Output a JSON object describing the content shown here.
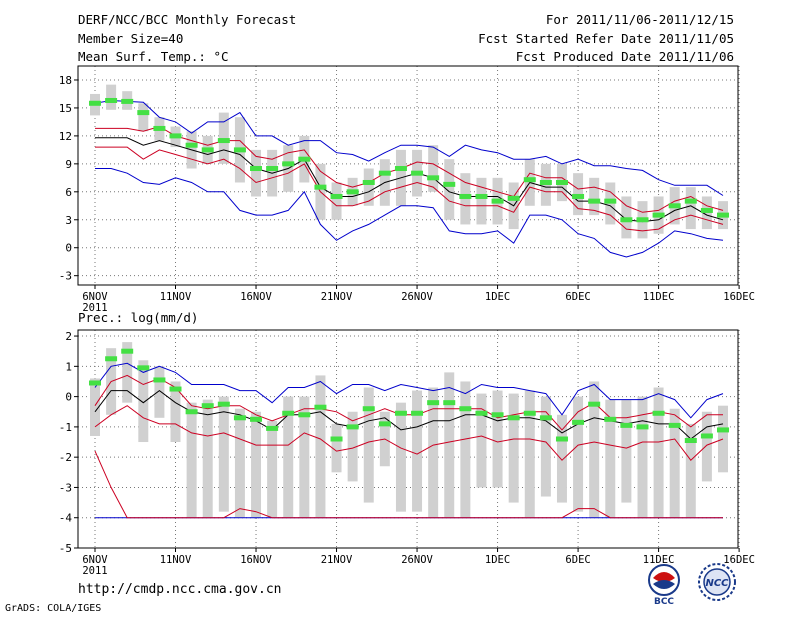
{
  "header": {
    "title": "DERF/NCC/BCC Monthly Forecast",
    "member": "Member Size=40",
    "variable": "Mean Surf. Temp.: °C",
    "period": "For 2011/11/06-2011/12/15",
    "started": "Fcst Started Refer Date 2011/11/05",
    "produced": "Fcst Produced Date 2011/11/06"
  },
  "footer": {
    "url": "http://cmdp.ncc.cma.gov.cn",
    "grads": "GrADS: COLA/IGES",
    "logo1_text": "BCC",
    "logo2_text": "NCC"
  },
  "colors": {
    "box": "#d0d0d0",
    "median": "#44e044",
    "mean": "#000000",
    "spread": "#cc0022",
    "extreme": "#0000cc",
    "grid": "#777777"
  },
  "chart_data": [
    {
      "type": "line",
      "title": "Mean Surf. Temp.: °C",
      "x_labels": [
        "6NOV",
        "11NOV",
        "16NOV",
        "21NOV",
        "26NOV",
        "1DEC",
        "6DEC",
        "11DEC",
        "16DEC"
      ],
      "x_sublabel": "2011",
      "days": 40,
      "ylim": [
        -4,
        19.5
      ],
      "yticks": [
        -3,
        0,
        3,
        6,
        9,
        12,
        15,
        18
      ],
      "series": [
        {
          "name": "ensemble max",
          "color": "#0000cc",
          "values": [
            15.5,
            15.8,
            15.7,
            15.6,
            14.0,
            13.5,
            12.3,
            13.5,
            13.5,
            14.5,
            12.0,
            12.0,
            11.0,
            11.5,
            11.5,
            10.2,
            10.0,
            9.3,
            10.2,
            11.0,
            11.0,
            10.8,
            9.8,
            11.0,
            10.5,
            10.2,
            9.5,
            9.5,
            9.8,
            9.0,
            9.5,
            8.8,
            8.8,
            8.5,
            8.3,
            7.3,
            6.7,
            6.7,
            6.7,
            5.6
          ]
        },
        {
          "name": "upper spread",
          "color": "#cc0022",
          "values": [
            12.8,
            12.8,
            12.8,
            12.5,
            13.0,
            12.0,
            11.5,
            11.0,
            11.5,
            11.5,
            9.8,
            9.5,
            10.2,
            10.5,
            8.2,
            7.0,
            6.5,
            7.0,
            8.0,
            8.5,
            9.2,
            9.0,
            8.0,
            7.0,
            6.5,
            6.0,
            5.5,
            8.0,
            7.5,
            7.5,
            6.3,
            6.5,
            6.0,
            4.5,
            3.8,
            4.0,
            5.0,
            5.5,
            4.5,
            4.0
          ]
        },
        {
          "name": "ensemble mean",
          "color": "#000000",
          "values": [
            11.8,
            11.8,
            11.8,
            11.0,
            11.5,
            11.0,
            10.5,
            10.0,
            10.5,
            10.0,
            8.5,
            8.0,
            8.5,
            9.5,
            6.5,
            5.5,
            5.5,
            6.0,
            7.0,
            7.5,
            8.0,
            7.5,
            6.0,
            5.5,
            5.5,
            5.5,
            4.5,
            7.0,
            6.5,
            6.5,
            5.0,
            5.0,
            4.5,
            3.0,
            2.8,
            3.0,
            4.0,
            4.5,
            3.5,
            3.0
          ]
        },
        {
          "name": "lower spread",
          "color": "#cc0022",
          "values": [
            10.8,
            10.8,
            10.8,
            9.5,
            10.5,
            10.0,
            9.5,
            9.0,
            9.5,
            8.5,
            7.0,
            7.5,
            8.0,
            9.0,
            6.0,
            4.5,
            4.5,
            5.0,
            6.0,
            6.5,
            7.0,
            6.5,
            5.0,
            4.5,
            4.5,
            4.5,
            3.8,
            6.5,
            6.0,
            6.0,
            4.2,
            4.0,
            3.5,
            2.0,
            1.8,
            2.0,
            3.0,
            3.5,
            3.0,
            2.5
          ]
        },
        {
          "name": "ensemble min",
          "color": "#0000cc",
          "values": [
            8.5,
            8.5,
            8.0,
            7.0,
            6.8,
            7.5,
            7.0,
            6.0,
            6.0,
            4.0,
            3.5,
            3.5,
            4.0,
            6.0,
            2.5,
            0.8,
            1.8,
            2.5,
            3.5,
            4.5,
            4.5,
            4.3,
            1.8,
            1.5,
            1.5,
            1.8,
            0.5,
            3.5,
            3.5,
            3.0,
            1.5,
            1.0,
            -0.5,
            -1.0,
            -0.5,
            0.5,
            1.8,
            1.5,
            1.0,
            0.8
          ]
        },
        {
          "name": "median",
          "color": "#44e044",
          "values": [
            15.5,
            15.8,
            15.7,
            14.5,
            12.8,
            12.0,
            11.0,
            10.5,
            11.5,
            10.5,
            8.5,
            8.5,
            9.0,
            9.5,
            6.5,
            5.5,
            6.0,
            7.0,
            8.0,
            8.5,
            8.0,
            7.5,
            6.8,
            5.5,
            5.5,
            5.0,
            5.3,
            7.3,
            7.0,
            7.0,
            5.5,
            5.0,
            5.0,
            3.0,
            3.0,
            3.5,
            4.5,
            5.0,
            4.0,
            3.5
          ]
        }
      ],
      "boxes": [
        [
          14.2,
          16.5
        ],
        [
          14.8,
          17.5
        ],
        [
          14.8,
          16.8
        ],
        [
          12.5,
          15.5
        ],
        [
          11.5,
          14.0
        ],
        [
          10.8,
          13.0
        ],
        [
          8.5,
          12.5
        ],
        [
          9.0,
          12.0
        ],
        [
          9.0,
          14.5
        ],
        [
          7.0,
          14.0
        ],
        [
          5.5,
          10.5
        ],
        [
          5.5,
          10.5
        ],
        [
          6.0,
          11.0
        ],
        [
          7.0,
          12.0
        ],
        [
          3.0,
          9.0
        ],
        [
          3.0,
          7.0
        ],
        [
          4.5,
          7.5
        ],
        [
          4.5,
          8.5
        ],
        [
          4.5,
          9.5
        ],
        [
          4.5,
          10.5
        ],
        [
          5.5,
          10.5
        ],
        [
          6.0,
          11.0
        ],
        [
          3.0,
          9.5
        ],
        [
          2.5,
          8.0
        ],
        [
          2.5,
          7.5
        ],
        [
          2.5,
          7.5
        ],
        [
          2.0,
          7.0
        ],
        [
          4.5,
          9.5
        ],
        [
          4.5,
          9.0
        ],
        [
          5.0,
          9.0
        ],
        [
          3.5,
          8.0
        ],
        [
          3.5,
          7.5
        ],
        [
          2.5,
          7.0
        ],
        [
          1.0,
          5.5
        ],
        [
          1.0,
          5.0
        ],
        [
          1.5,
          5.5
        ],
        [
          2.5,
          6.5
        ],
        [
          2.0,
          6.5
        ],
        [
          2.0,
          5.5
        ],
        [
          2.0,
          5.0
        ]
      ]
    },
    {
      "type": "line",
      "title": "Prec.: log(mm/d)",
      "x_labels": [
        "6NOV",
        "11NOV",
        "16NOV",
        "21NOV",
        "26NOV",
        "1DEC",
        "6DEC",
        "11DEC",
        "16DEC"
      ],
      "x_sublabel": "2011",
      "days": 40,
      "ylim": [
        -5,
        2.2
      ],
      "yticks": [
        -5,
        -4,
        -3,
        -2,
        -1,
        0,
        1,
        2
      ],
      "series": [
        {
          "name": "ensemble max",
          "color": "#0000cc",
          "values": [
            0.3,
            1.0,
            1.1,
            0.8,
            1.0,
            0.8,
            0.4,
            0.4,
            0.4,
            0.2,
            0.2,
            -0.2,
            0.3,
            0.3,
            0.5,
            0.1,
            0.4,
            0.4,
            0.2,
            0.4,
            0.3,
            0.2,
            0.3,
            0.1,
            0.4,
            0.3,
            0.3,
            0.2,
            0.1,
            -0.6,
            0.2,
            0.4,
            -0.1,
            -0.1,
            -0.1,
            0.1,
            -0.1,
            -0.7,
            -0.1,
            0.1
          ]
        },
        {
          "name": "upper spread",
          "color": "#cc0022",
          "values": [
            -0.3,
            0.5,
            0.7,
            0.4,
            0.6,
            0.3,
            -0.3,
            -0.4,
            -0.3,
            -0.3,
            -0.6,
            -0.8,
            -0.6,
            -0.4,
            -0.4,
            -0.5,
            -0.8,
            -0.6,
            -0.4,
            -0.6,
            -0.6,
            -0.4,
            -0.4,
            -0.4,
            -0.4,
            -0.7,
            -0.6,
            -0.5,
            -0.5,
            -1.1,
            -0.5,
            -0.2,
            -0.7,
            -0.7,
            -0.6,
            -0.5,
            -0.6,
            -1.0,
            -0.6,
            -0.6
          ]
        },
        {
          "name": "ensemble mean",
          "color": "#000000",
          "values": [
            -0.5,
            0.2,
            0.2,
            -0.2,
            0.2,
            -0.2,
            -0.5,
            -0.6,
            -0.5,
            -0.6,
            -0.8,
            -1.1,
            -0.6,
            -0.6,
            -0.5,
            -0.9,
            -1.0,
            -0.8,
            -0.7,
            -1.1,
            -1.0,
            -0.8,
            -0.8,
            -0.6,
            -0.6,
            -0.8,
            -0.7,
            -0.7,
            -0.8,
            -1.2,
            -0.9,
            -0.7,
            -0.8,
            -0.9,
            -0.8,
            -0.9,
            -0.9,
            -1.4,
            -1.0,
            -0.9
          ]
        },
        {
          "name": "lower spread",
          "color": "#cc0022",
          "values": [
            -1.0,
            -0.6,
            -0.3,
            -0.7,
            -0.9,
            -0.9,
            -1.2,
            -1.3,
            -1.2,
            -1.4,
            -1.6,
            -1.6,
            -1.6,
            -1.2,
            -1.4,
            -1.8,
            -1.7,
            -1.5,
            -1.4,
            -1.7,
            -1.9,
            -1.6,
            -1.5,
            -1.4,
            -1.3,
            -1.5,
            -1.4,
            -1.4,
            -1.5,
            -2.1,
            -1.6,
            -1.5,
            -1.6,
            -1.7,
            -1.5,
            -1.5,
            -1.4,
            -2.1,
            -1.6,
            -1.4
          ]
        },
        {
          "name": "ensemble min",
          "color": "#0000cc",
          "values": [
            -4,
            -4,
            -4,
            -4,
            -4,
            -4,
            -4,
            -4,
            -4,
            -4,
            -4,
            -4,
            -4,
            -4,
            -4,
            -4,
            -4,
            -4,
            -4,
            -4,
            -4,
            -4,
            -4,
            -4,
            -4,
            -4,
            -4,
            -4,
            -4,
            -4,
            -4,
            -4,
            -4,
            -4,
            -4,
            -4,
            -4,
            -4,
            -4,
            -4
          ]
        },
        {
          "name": "lower extreme",
          "color": "#cc0022",
          "values": [
            -1.8,
            -3.0,
            -4.0,
            -4.0,
            -4.0,
            -4.0,
            -4.0,
            -4.0,
            -4.0,
            -3.7,
            -3.8,
            -4.0,
            -4.0,
            -4.0,
            -4.0,
            -4.0,
            -4.0,
            -4.0,
            -4.0,
            -4.0,
            -4.0,
            -4.0,
            -4.0,
            -4.0,
            -4.0,
            -4.0,
            -4.0,
            -4.0,
            -4.0,
            -4.0,
            -3.7,
            -3.7,
            -4.0,
            -4.0,
            -4.0,
            -4.0,
            -4.0,
            -4.0,
            -4.0,
            -4.0
          ]
        },
        {
          "name": "median",
          "color": "#44e044",
          "values": [
            0.45,
            1.25,
            1.5,
            0.95,
            0.55,
            0.25,
            -0.5,
            -0.3,
            -0.25,
            -0.7,
            -0.75,
            -1.05,
            -0.55,
            -0.6,
            -0.35,
            -1.4,
            -1.0,
            -0.4,
            -0.9,
            -0.55,
            -0.55,
            -0.2,
            -0.2,
            -0.4,
            -0.55,
            -0.6,
            -0.7,
            -0.55,
            -0.7,
            -1.4,
            -0.85,
            -0.25,
            -0.75,
            -0.95,
            -1.0,
            -0.55,
            -0.95,
            -1.45,
            -1.3,
            -1.1
          ]
        }
      ],
      "boxes": [
        [
          -1.3,
          0.6
        ],
        [
          -0.6,
          1.6
        ],
        [
          -0.2,
          1.8
        ],
        [
          -1.5,
          1.2
        ],
        [
          -0.7,
          1.0
        ],
        [
          -1.5,
          0.5
        ],
        [
          -4.0,
          -0.2
        ],
        [
          -4.0,
          -0.1
        ],
        [
          -3.8,
          0.0
        ],
        [
          -4.0,
          -0.4
        ],
        [
          -4.0,
          -0.5
        ],
        [
          -4.0,
          -0.8
        ],
        [
          -4.0,
          0.0
        ],
        [
          -4.0,
          0.0
        ],
        [
          -4.0,
          0.7
        ],
        [
          -2.5,
          -0.9
        ],
        [
          -2.8,
          -0.5
        ],
        [
          -3.5,
          0.3
        ],
        [
          -2.3,
          -0.5
        ],
        [
          -3.8,
          -0.2
        ],
        [
          -3.8,
          0.2
        ],
        [
          -4.0,
          0.3
        ],
        [
          -4.0,
          0.8
        ],
        [
          -4.0,
          0.5
        ],
        [
          -3.0,
          0.1
        ],
        [
          -3.0,
          0.2
        ],
        [
          -3.5,
          0.1
        ],
        [
          -4.0,
          0.2
        ],
        [
          -3.3,
          0.0
        ],
        [
          -3.5,
          -0.6
        ],
        [
          -3.8,
          0.0
        ],
        [
          -4.0,
          0.5
        ],
        [
          -4.0,
          -0.1
        ],
        [
          -3.5,
          -0.1
        ],
        [
          -4.0,
          0.0
        ],
        [
          -4.0,
          0.3
        ],
        [
          -4.0,
          -0.4
        ],
        [
          -4.0,
          -0.9
        ],
        [
          -2.8,
          -0.5
        ],
        [
          -2.5,
          -0.3
        ]
      ]
    }
  ]
}
